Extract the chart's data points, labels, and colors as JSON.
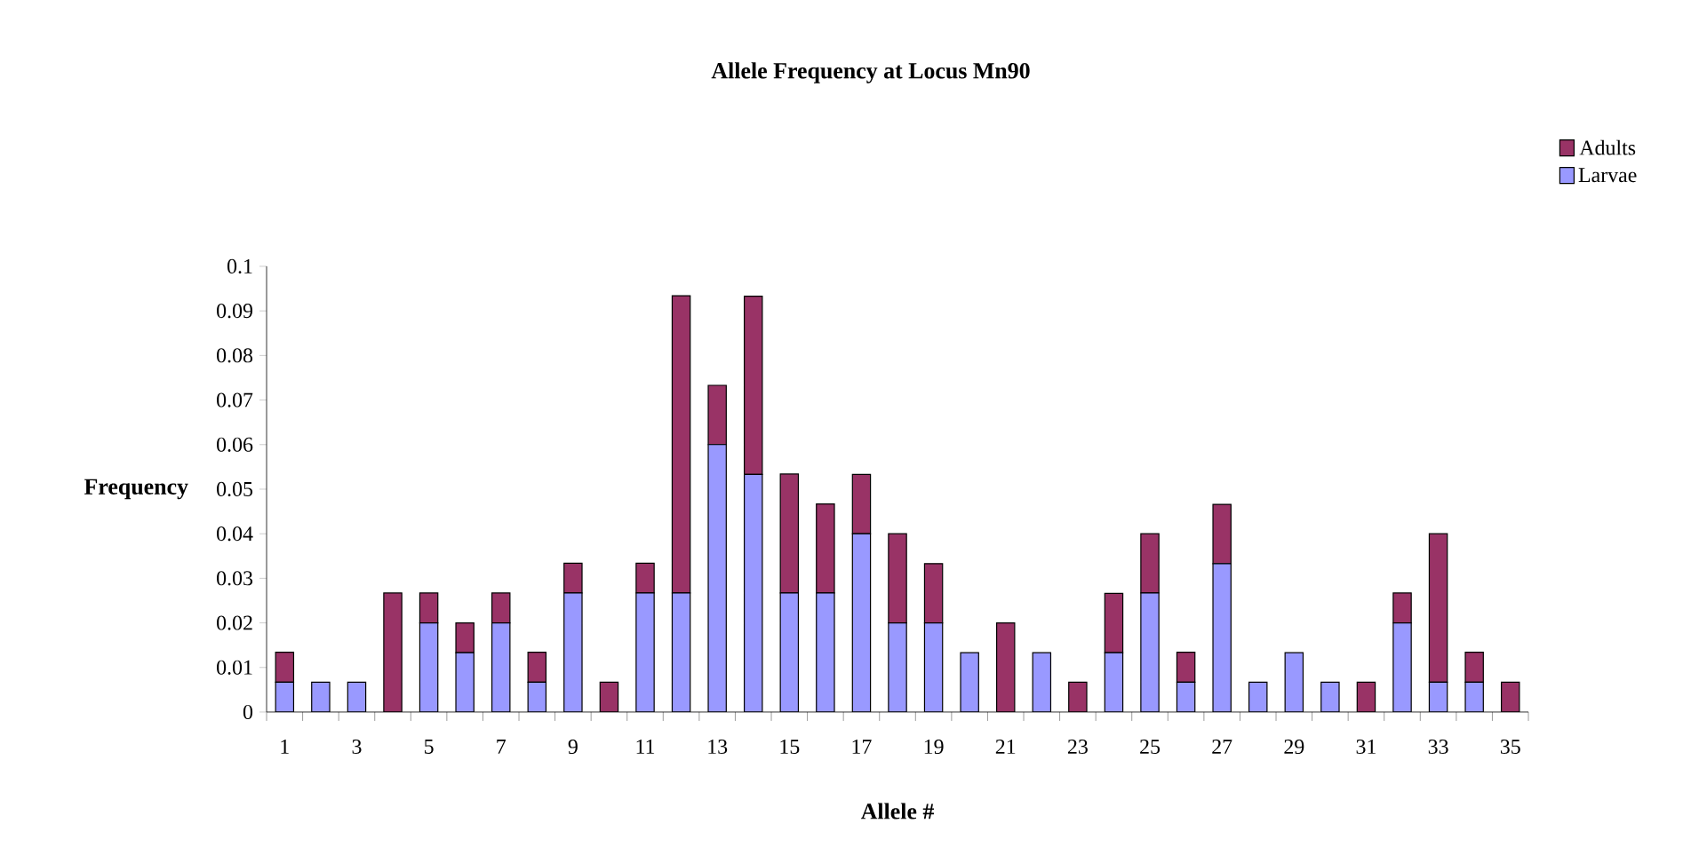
{
  "chart_data": {
    "type": "bar",
    "title": "Allele Frequency at Locus Mn90",
    "xlabel": "Allele #",
    "ylabel": "Frequency",
    "categories": [
      "1",
      null,
      "3",
      null,
      "5",
      null,
      "7",
      null,
      "9",
      null,
      "11",
      null,
      "13",
      null,
      "15",
      null,
      "17",
      null,
      "19",
      null,
      "21",
      null,
      "23",
      null,
      "25",
      null,
      "27",
      null,
      "29",
      null,
      "31",
      null,
      "33",
      null,
      "35"
    ],
    "stacked": true,
    "series": [
      {
        "name": "Larvae",
        "color": "#9999ff",
        "values": [
          0.0067,
          0.0067,
          0.0067,
          0,
          0.02,
          0.0133,
          0.02,
          0.0067,
          0.0267,
          0,
          0.0267,
          0.0267,
          0.06,
          0.0533,
          0.0267,
          0.0267,
          0.04,
          0.02,
          0.02,
          0.0133,
          0,
          0.0133,
          0,
          0.0133,
          0.0267,
          0.0067,
          0.0333,
          0.0067,
          0.0133,
          0.0067,
          0,
          0.02,
          0.0067,
          0.0067,
          0
        ]
      },
      {
        "name": "Adults",
        "color": "#993366",
        "values": [
          0.0067,
          0,
          0,
          0.0267,
          0.0067,
          0.0067,
          0.0067,
          0.0067,
          0.0067,
          0.0067,
          0.0067,
          0.0667,
          0.0133,
          0.04,
          0.0267,
          0.02,
          0.0133,
          0.02,
          0.0133,
          0,
          0.02,
          0,
          0.0067,
          0.0133,
          0.0133,
          0.0067,
          0.0133,
          0,
          0,
          0,
          0.0067,
          0.0067,
          0.0333,
          0.0067,
          0.0067
        ]
      }
    ],
    "ylim": [
      0,
      0.1
    ],
    "yticks": [
      0,
      0.01,
      0.02,
      0.03,
      0.04,
      0.05,
      0.06,
      0.07,
      0.08,
      0.09,
      0.1
    ],
    "grid": false,
    "legend": "top right"
  }
}
